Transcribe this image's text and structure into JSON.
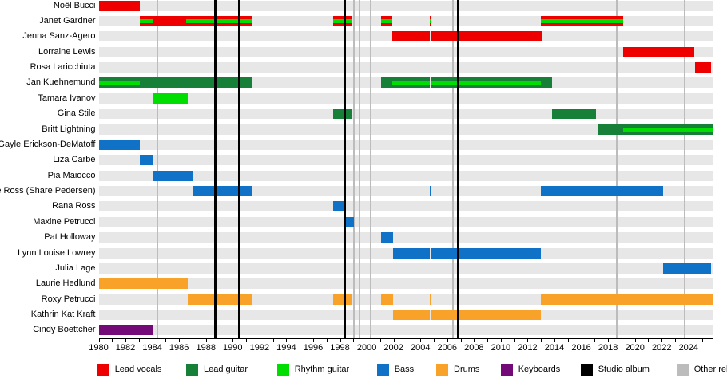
{
  "chart_data": {
    "type": "timeline",
    "x_axis": {
      "start": 1980,
      "end": 2025.86,
      "label_years": [
        1980,
        1982,
        1984,
        1986,
        1988,
        1990,
        1992,
        1994,
        1996,
        1998,
        2000,
        2002,
        2004,
        2006,
        2008,
        2010,
        2012,
        2014,
        2016,
        2018,
        2020,
        2022,
        2024
      ],
      "tick_every_years": 1
    },
    "palette": {
      "lead_vocals": "#ee0000",
      "lead_guitar": "#168039",
      "rhythm_guitar": "#00dd00",
      "bass": "#1072c6",
      "drums": "#f9a229",
      "keyboards": "#730a78",
      "studio_album": "#000000",
      "other_release": "#bcbcbc"
    },
    "members": [
      {
        "name": "Noël Bucci",
        "segments": [
          {
            "start": 1980,
            "end": 1983.05,
            "role": "lead_vocals"
          }
        ]
      },
      {
        "name": "Janet Gardner",
        "segments": [
          {
            "start": 1983.05,
            "end": 1984.1,
            "role": "lead_vocals",
            "stripe": "rhythm_guitar"
          },
          {
            "start": 1984.1,
            "end": 1986.5,
            "role": "lead_vocals"
          },
          {
            "start": 1986.5,
            "end": 1991.5,
            "role": "lead_vocals",
            "stripe": "rhythm_guitar"
          },
          {
            "start": 1997.5,
            "end": 1998.85,
            "role": "lead_vocals",
            "stripe": "rhythm_guitar"
          },
          {
            "start": 2001.05,
            "end": 2001.9,
            "role": "lead_vocals",
            "stripe": "rhythm_guitar"
          },
          {
            "start": 2004.7,
            "end": 2004.85,
            "role": "lead_vocals",
            "stripe": "rhythm_guitar"
          },
          {
            "start": 2013.0,
            "end": 2019.1,
            "role": "lead_vocals",
            "stripe": "rhythm_guitar"
          }
        ]
      },
      {
        "name": "Jenna Sanz-Agero",
        "segments": [
          {
            "start": 2001.9,
            "end": 2004.7,
            "role": "lead_vocals"
          },
          {
            "start": 2004.85,
            "end": 2013.05,
            "role": "lead_vocals"
          }
        ]
      },
      {
        "name": "Lorraine Lewis",
        "segments": [
          {
            "start": 2019.1,
            "end": 2024.45,
            "role": "lead_vocals"
          }
        ]
      },
      {
        "name": "Rosa Laricchiuta",
        "segments": [
          {
            "start": 2024.5,
            "end": 2025.7,
            "role": "lead_vocals"
          }
        ]
      },
      {
        "name": "Jan Kuehnemund",
        "segments": [
          {
            "start": 1980,
            "end": 1983.05,
            "role": "lead_guitar",
            "stripe": "rhythm_guitar"
          },
          {
            "start": 1983.05,
            "end": 1991.5,
            "role": "lead_guitar"
          },
          {
            "start": 2001.05,
            "end": 2001.9,
            "role": "lead_guitar"
          },
          {
            "start": 2001.9,
            "end": 2004.7,
            "role": "lead_guitar",
            "stripe": "rhythm_guitar"
          },
          {
            "start": 2004.85,
            "end": 2013.0,
            "role": "lead_guitar",
            "stripe": "rhythm_guitar"
          },
          {
            "start": 2013.0,
            "end": 2013.85,
            "role": "lead_guitar"
          }
        ]
      },
      {
        "name": "Tamara Ivanov",
        "segments": [
          {
            "start": 1984.1,
            "end": 1986.65,
            "role": "rhythm_guitar"
          }
        ]
      },
      {
        "name": "Gina Stile",
        "segments": [
          {
            "start": 1997.5,
            "end": 1998.85,
            "role": "lead_guitar"
          },
          {
            "start": 2013.8,
            "end": 2017.1,
            "role": "lead_guitar"
          }
        ]
      },
      {
        "name": "Britt Lightning",
        "segments": [
          {
            "start": 2017.2,
            "end": 2019.1,
            "role": "lead_guitar"
          },
          {
            "start": 2019.1,
            "end": 2025.86,
            "role": "lead_guitar",
            "stripe": "rhythm_guitar"
          }
        ]
      },
      {
        "name": "Gayle Erickson-DeMatoff",
        "segments": [
          {
            "start": 1980,
            "end": 1983.05,
            "role": "bass"
          }
        ]
      },
      {
        "name": "Liza Carbé",
        "segments": [
          {
            "start": 1983.05,
            "end": 1984.1,
            "role": "bass"
          }
        ]
      },
      {
        "name": "Pia Maiocco",
        "segments": [
          {
            "start": 1984.1,
            "end": 1987.05,
            "role": "bass"
          }
        ]
      },
      {
        "name": "Share Ross (Share Pedersen)",
        "segments": [
          {
            "start": 1987.05,
            "end": 1991.5,
            "role": "bass"
          },
          {
            "start": 2004.7,
            "end": 2004.85,
            "role": "bass"
          },
          {
            "start": 2013.0,
            "end": 2022.1,
            "role": "bass"
          }
        ]
      },
      {
        "name": "Rana Ross",
        "segments": [
          {
            "start": 1997.5,
            "end": 1998.3,
            "role": "bass"
          }
        ]
      },
      {
        "name": "Maxine Petrucci",
        "segments": [
          {
            "start": 1998.45,
            "end": 1999.05,
            "role": "bass"
          }
        ]
      },
      {
        "name": "Pat Holloway",
        "segments": [
          {
            "start": 2001.05,
            "end": 2001.95,
            "role": "bass"
          }
        ]
      },
      {
        "name": "Lynn Louise Lowrey",
        "segments": [
          {
            "start": 2001.95,
            "end": 2004.7,
            "role": "bass"
          },
          {
            "start": 2004.85,
            "end": 2013.0,
            "role": "bass"
          }
        ]
      },
      {
        "name": "Julia Lage",
        "segments": [
          {
            "start": 2022.1,
            "end": 2025.7,
            "role": "bass"
          }
        ]
      },
      {
        "name": "Laurie Hedlund",
        "segments": [
          {
            "start": 1980,
            "end": 1986.65,
            "role": "drums"
          }
        ]
      },
      {
        "name": "Roxy Petrucci",
        "segments": [
          {
            "start": 1986.65,
            "end": 1991.5,
            "role": "drums"
          },
          {
            "start": 1997.5,
            "end": 1998.85,
            "role": "drums"
          },
          {
            "start": 2001.05,
            "end": 2001.95,
            "role": "drums"
          },
          {
            "start": 2004.7,
            "end": 2004.85,
            "role": "drums"
          },
          {
            "start": 2013.0,
            "end": 2025.86,
            "role": "drums"
          }
        ]
      },
      {
        "name": "Kathrin Kat Kraft",
        "segments": [
          {
            "start": 2001.95,
            "end": 2004.7,
            "role": "drums"
          },
          {
            "start": 2004.85,
            "end": 2013.0,
            "role": "drums"
          }
        ]
      },
      {
        "name": "Cindy Boettcher",
        "segments": [
          {
            "start": 1980,
            "end": 1984.1,
            "role": "keyboards"
          }
        ]
      }
    ],
    "studio_album_lines": [
      1988.73,
      1990.46,
      1998.35,
      2006.8
    ],
    "other_release_lines": [
      1984.38,
      1999.06,
      1999.46,
      2000.31,
      2006.41,
      2018.63,
      2023.71
    ],
    "legend": [
      {
        "label": "Lead vocals",
        "role": "lead_vocals"
      },
      {
        "label": "Lead guitar",
        "role": "lead_guitar"
      },
      {
        "label": "Rhythm guitar",
        "role": "rhythm_guitar"
      },
      {
        "label": "Bass",
        "role": "bass"
      },
      {
        "label": "Drums",
        "role": "drums"
      },
      {
        "label": "Keyboards",
        "role": "keyboards"
      },
      {
        "label": "Studio album",
        "role": "studio_album"
      },
      {
        "label": "Other releases",
        "role": "other_release"
      }
    ]
  }
}
